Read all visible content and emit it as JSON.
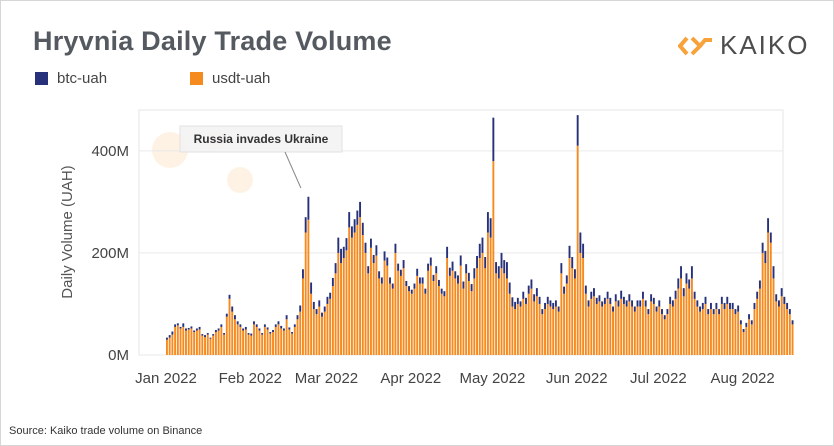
{
  "header": {
    "title": "Hryvnia Daily Trade Volume"
  },
  "brand": {
    "name": "KAIKO",
    "logo_icon": "kaiko-chevron-icon",
    "accent": "#f7a23b"
  },
  "footer": {
    "source": "Source: Kaiko trade volume on Binance"
  },
  "chart_data": {
    "type": "bar",
    "stacked": true,
    "ylabel": "Daily Volume (UAH)",
    "ylim": [
      0,
      480000000
    ],
    "y_ticks": [
      0,
      200000000,
      400000000
    ],
    "y_tick_labels": [
      "0M",
      "200M",
      "400M"
    ],
    "x_ticks": [
      "2022-01-01",
      "2022-02-01",
      "2022-03-01",
      "2022-04-01",
      "2022-05-01",
      "2022-06-01",
      "2022-07-01",
      "2022-08-01"
    ],
    "x_tick_labels": [
      "Jan 2022",
      "Feb 2022",
      "Mar 2022",
      "Apr 2022",
      "May 2022",
      "Jun 2022",
      "Jul 2022",
      "Aug 2022"
    ],
    "x_start": "2022-01-01",
    "grid": true,
    "legend": "top-left",
    "series": [
      {
        "name": "btc-uah",
        "color": "#26317a",
        "values": [
          4,
          5,
          6,
          5,
          4,
          3,
          7,
          4,
          3,
          4,
          3,
          4,
          5,
          3,
          4,
          3,
          2,
          3,
          4,
          4,
          5,
          3,
          6,
          8,
          10,
          8,
          6,
          5,
          4,
          5,
          3,
          4,
          6,
          5,
          4,
          3,
          5,
          4,
          3,
          4,
          5,
          6,
          5,
          4,
          8,
          4,
          3,
          5,
          8,
          12,
          18,
          30,
          45,
          22,
          14,
          10,
          12,
          8,
          10,
          14,
          12,
          16,
          20,
          30,
          28,
          22,
          24,
          30,
          22,
          26,
          28,
          30,
          24,
          20,
          14,
          18,
          16,
          20,
          14,
          12,
          18,
          16,
          12,
          10,
          18,
          14,
          12,
          16,
          10,
          10,
          8,
          10,
          14,
          12,
          12,
          10,
          14,
          16,
          12,
          14,
          12,
          10,
          10,
          22,
          16,
          18,
          14,
          16,
          20,
          14,
          18,
          16,
          14,
          20,
          24,
          28,
          30,
          22,
          40,
          38,
          85,
          22,
          24,
          30,
          26,
          32,
          22,
          18,
          14,
          12,
          10,
          14,
          12,
          16,
          18,
          14,
          16,
          14,
          10,
          12,
          14,
          12,
          12,
          12,
          10,
          20,
          14,
          16,
          24,
          22,
          18,
          60,
          40,
          28,
          16,
          12,
          14,
          16,
          12,
          12,
          10,
          12,
          14,
          12,
          10,
          14,
          12,
          16,
          14,
          12,
          14,
          12,
          10,
          12,
          12,
          14,
          12,
          10,
          14,
          12,
          10,
          12,
          10,
          8,
          10,
          14,
          12,
          16,
          20,
          24,
          16,
          20,
          18,
          24,
          14,
          12,
          10,
          12,
          14,
          10,
          12,
          10,
          12,
          10,
          14,
          12,
          14,
          12,
          12,
          10,
          12,
          8,
          6,
          8,
          10,
          8,
          12,
          14,
          16,
          20,
          24,
          28,
          20,
          24,
          14,
          12,
          16,
          14,
          12,
          10,
          8
        ],
        "note": "values in millions UAH"
      },
      {
        "name": "usdt-uah",
        "color": "#f58a1f",
        "values": [
          30,
          34,
          40,
          55,
          58,
          52,
          55,
          48,
          50,
          52,
          45,
          48,
          50,
          38,
          35,
          40,
          32,
          38,
          45,
          48,
          55,
          40,
          75,
          110,
          85,
          70,
          60,
          55,
          48,
          50,
          40,
          38,
          60,
          55,
          48,
          40,
          55,
          50,
          42,
          45,
          55,
          60,
          52,
          48,
          70,
          50,
          42,
          55,
          70,
          85,
          150,
          240,
          265,
          120,
          90,
          80,
          95,
          75,
          85,
          100,
          110,
          135,
          160,
          200,
          180,
          190,
          205,
          250,
          230,
          240,
          255,
          270,
          235,
          200,
          160,
          210,
          180,
          195,
          150,
          140,
          185,
          175,
          140,
          130,
          200,
          165,
          155,
          170,
          135,
          125,
          120,
          130,
          155,
          140,
          140,
          120,
          165,
          175,
          145,
          160,
          135,
          120,
          115,
          190,
          155,
          165,
          150,
          140,
          175,
          130,
          160,
          145,
          125,
          150,
          170,
          190,
          200,
          170,
          240,
          230,
          380,
          160,
          150,
          170,
          160,
          150,
          120,
          95,
          90,
          100,
          95,
          110,
          100,
          120,
          130,
          105,
          115,
          100,
          80,
          90,
          100,
          95,
          90,
          95,
          85,
          160,
          120,
          140,
          190,
          170,
          150,
          410,
          200,
          190,
          120,
          95,
          110,
          115,
          100,
          105,
          95,
          100,
          110,
          100,
          85,
          105,
          95,
          110,
          100,
          95,
          105,
          95,
          85,
          95,
          95,
          110,
          95,
          80,
          105,
          100,
          85,
          95,
          80,
          70,
          80,
          100,
          95,
          110,
          130,
          150,
          115,
          140,
          130,
          150,
          110,
          95,
          85,
          90,
          100,
          80,
          90,
          80,
          90,
          80,
          100,
          90,
          100,
          90,
          90,
          80,
          85,
          60,
          45,
          55,
          70,
          60,
          90,
          110,
          130,
          200,
          180,
          240,
          220,
          150,
          105,
          95,
          115,
          100,
          90,
          80,
          60
        ],
        "note": "values in millions UAH"
      }
    ],
    "annotations": [
      {
        "text": "Russia invades Ukraine",
        "date": "2022-02-24"
      }
    ]
  }
}
